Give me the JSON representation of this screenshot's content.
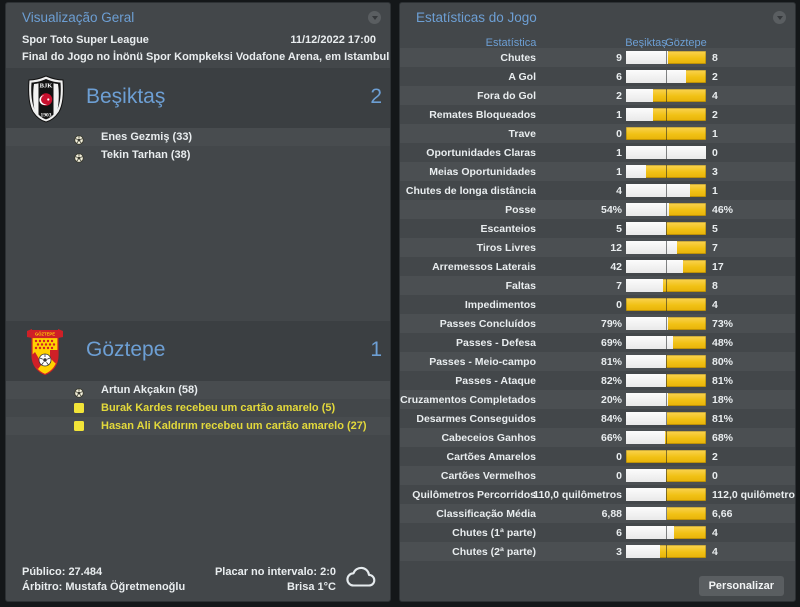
{
  "colors": {
    "accent_blue": "#6d9fd4",
    "bar_yellow": "#f1c115",
    "bar_white": "#f5f5f5",
    "yellow_card_text": "#e3d93b",
    "panel_bg": "#43474a",
    "band_bg": "#3b3f42"
  },
  "left_panel": {
    "title": "Visualização Geral",
    "competition": "Spor Toto Super League",
    "datetime": "11/12/2022 17:00",
    "venue_line": "Final do Jogo no İnönü Spor Kompkeksi Vodafone Arena, em Istambul",
    "home": {
      "name": "Beşiktaş",
      "score": "2",
      "events": [
        {
          "type": "goal",
          "text": "Enes Gezmiş (33)"
        },
        {
          "type": "goal",
          "text": "Tekin Tarhan (38)"
        }
      ]
    },
    "away": {
      "name": "Göztepe",
      "score": "1",
      "events": [
        {
          "type": "goal",
          "text": "Artun Akçakın (58)"
        },
        {
          "type": "yellow",
          "text": "Burak Kardes recebeu um cartão amarelo (5)"
        },
        {
          "type": "yellow",
          "text": "Hasan Ali Kaldırım recebeu um cartão amarelo (27)"
        }
      ]
    },
    "footer": {
      "attendance": "Público: 27.484",
      "referee": "Árbitro: Mustafa Öğretmenoğlu",
      "halftime": "Placar no intervalo: 2:0",
      "weather": "Brisa 1°C"
    }
  },
  "right_panel": {
    "title": "Estatísticas do Jogo",
    "col_stat": "Estatística",
    "col_home": "Beşiktaş",
    "col_away": "Göztepe",
    "personalize_label": "Personalizar"
  },
  "chart_data": {
    "type": "bar",
    "title": "Estatísticas do Jogo",
    "home_team": "Beşiktaş",
    "away_team": "Göztepe",
    "legend_position": "top",
    "rows": [
      {
        "label": "Chutes",
        "home": "9",
        "away": "8",
        "home_frac": 52.9
      },
      {
        "label": "A Gol",
        "home": "6",
        "away": "2",
        "home_frac": 75
      },
      {
        "label": "Fora do Gol",
        "home": "2",
        "away": "4",
        "home_frac": 33.3
      },
      {
        "label": "Remates Bloqueados",
        "home": "1",
        "away": "2",
        "home_frac": 33.3
      },
      {
        "label": "Trave",
        "home": "0",
        "away": "1",
        "home_frac": 0
      },
      {
        "label": "Oportunidades Claras",
        "home": "1",
        "away": "0",
        "home_frac": 100
      },
      {
        "label": "Meias Oportunidades",
        "home": "1",
        "away": "3",
        "home_frac": 25
      },
      {
        "label": "Chutes de longa distância",
        "home": "4",
        "away": "1",
        "home_frac": 80
      },
      {
        "label": "Posse",
        "home": "54%",
        "away": "46%",
        "home_frac": 54
      },
      {
        "label": "Escanteios",
        "home": "5",
        "away": "5",
        "home_frac": 50
      },
      {
        "label": "Tiros Livres",
        "home": "12",
        "away": "7",
        "home_frac": 63.2
      },
      {
        "label": "Arremessos Laterais",
        "home": "42",
        "away": "17",
        "home_frac": 71.2
      },
      {
        "label": "Faltas",
        "home": "7",
        "away": "8",
        "home_frac": 46.7
      },
      {
        "label": "Impedimentos",
        "home": "0",
        "away": "4",
        "home_frac": 0
      },
      {
        "label": "Passes Concluídos",
        "home": "79%",
        "away": "73%",
        "home_frac": 52
      },
      {
        "label": "Passes - Defesa",
        "home": "69%",
        "away": "48%",
        "home_frac": 59
      },
      {
        "label": "Passes - Meio-campo",
        "home": "81%",
        "away": "80%",
        "home_frac": 50.3
      },
      {
        "label": "Passes - Ataque",
        "home": "82%",
        "away": "81%",
        "home_frac": 50.3
      },
      {
        "label": "Cruzamentos Completados",
        "home": "20%",
        "away": "18%",
        "home_frac": 52.6
      },
      {
        "label": "Desarmes Conseguidos",
        "home": "84%",
        "away": "81%",
        "home_frac": 50.9
      },
      {
        "label": "Cabeceios Ganhos",
        "home": "66%",
        "away": "68%",
        "home_frac": 49.3
      },
      {
        "label": "Cartões Amarelos",
        "home": "0",
        "away": "2",
        "home_frac": 0
      },
      {
        "label": "Cartões Vermelhos",
        "home": "0",
        "away": "0",
        "home_frac": 50
      },
      {
        "label": "Quilômetros Percorridos",
        "home": "110,0 quilômetros",
        "away": "112,0 quilômetros",
        "home_frac": 49.5
      },
      {
        "label": "Classificação Média",
        "home": "6,88",
        "away": "6,66",
        "home_frac": 50.8
      },
      {
        "label": "Chutes (1ª parte)",
        "home": "6",
        "away": "4",
        "home_frac": 60
      },
      {
        "label": "Chutes (2ª parte)",
        "home": "3",
        "away": "4",
        "home_frac": 42.9
      }
    ]
  }
}
